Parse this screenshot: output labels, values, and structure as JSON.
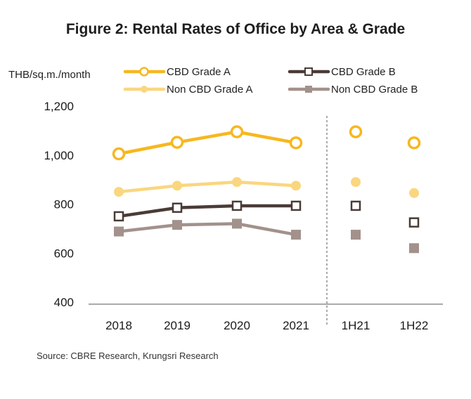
{
  "chart_data": {
    "type": "line",
    "title": "Figure 2: Rental Rates of Office by Area & Grade",
    "ylabel": "THB/sq.m./month",
    "xlabel": "",
    "categories": [
      "2018",
      "2019",
      "2020",
      "2021",
      "1H21",
      "1H22"
    ],
    "ylim": [
      400,
      1200
    ],
    "yticks": [
      "1,200",
      "1,000",
      "800",
      "600",
      "400"
    ],
    "ytick_values": [
      1200,
      1000,
      800,
      600,
      400
    ],
    "legend_position": "top",
    "series": [
      {
        "name": "CBD Grade A",
        "color": "#F7B71F",
        "marker": "circle-open",
        "values": [
          1005,
          1052,
          1095,
          1050,
          1095,
          1050
        ]
      },
      {
        "name": "CBD Grade B",
        "color": "#4A3B37",
        "marker": "square-open",
        "values": [
          750,
          785,
          793,
          793,
          793,
          725
        ]
      },
      {
        "name": "Non CBD Grade A",
        "color": "#FAD67F",
        "marker": "circle-filled",
        "values": [
          850,
          875,
          890,
          875,
          890,
          845
        ]
      },
      {
        "name": "Non CBD Grade B",
        "color": "#A3918B",
        "marker": "square-filled",
        "values": [
          688,
          715,
          720,
          675,
          675,
          620
        ]
      }
    ],
    "line_segment_categories": 4,
    "source": "Source: CBRE Research, Krungsri Research"
  }
}
